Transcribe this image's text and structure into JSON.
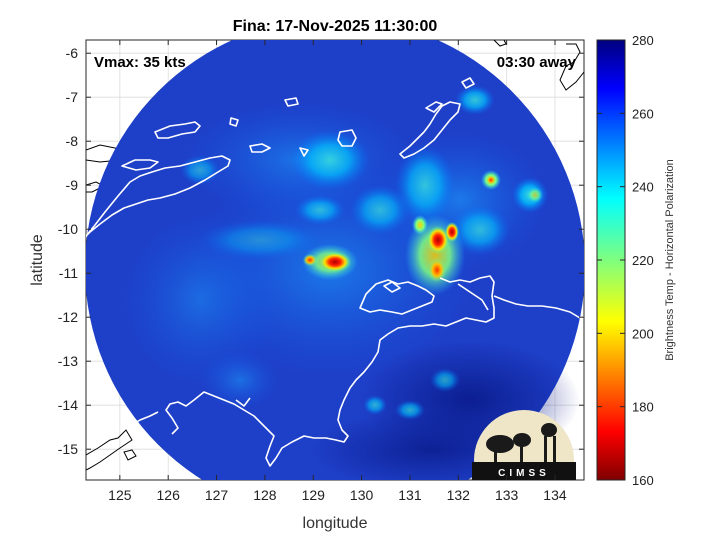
{
  "figure": {
    "title": "Fina: 17-Nov-2025 11:30:00",
    "vmax_text": "Vmax: 35 kts",
    "time_away_text": "03:30 away",
    "xlabel": "longitude",
    "ylabel": "latitude",
    "colorbar_label": "Brightness Temp - Horizontal Polarization",
    "logo_text": "CIMSS"
  },
  "colors": {
    "ocean_background": "#1f3fc4",
    "coastline": "#ffffff",
    "external_coastline": "#000000"
  },
  "chart_data": {
    "type": "heatmap",
    "title": "Fina: 17-Nov-2025 11:30:00",
    "xlabel": "longitude",
    "ylabel": "latitude",
    "xlim": [
      124.3,
      134.6
    ],
    "ylim": [
      -15.7,
      -5.7
    ],
    "x_ticks": [
      125,
      126,
      127,
      128,
      129,
      130,
      131,
      132,
      133,
      134
    ],
    "y_ticks": [
      -6,
      -7,
      -8,
      -9,
      -10,
      -11,
      -12,
      -13,
      -14,
      -15
    ],
    "colorbar": {
      "label": "Brightness Temp - Horizontal Polarization",
      "range": [
        160,
        280
      ],
      "ticks": [
        160,
        180,
        200,
        220,
        240,
        260,
        280
      ],
      "colormap": "jet"
    },
    "swath": {
      "center_lon": 129.5,
      "center_lat": -10.8,
      "radius_deg": 4.9
    },
    "features": [
      {
        "label": "cold core west",
        "lon": 129.4,
        "lat": -10.75,
        "value": 175
      },
      {
        "label": "cold cluster east",
        "lon": 131.7,
        "lat": -10.4,
        "value": 185
      },
      {
        "label": "convective band",
        "lon": 131.5,
        "lat": -10.9,
        "value": 195
      },
      {
        "label": "spot north-east",
        "lon": 132.7,
        "lat": -8.9,
        "value": 215
      }
    ],
    "grid": true
  }
}
